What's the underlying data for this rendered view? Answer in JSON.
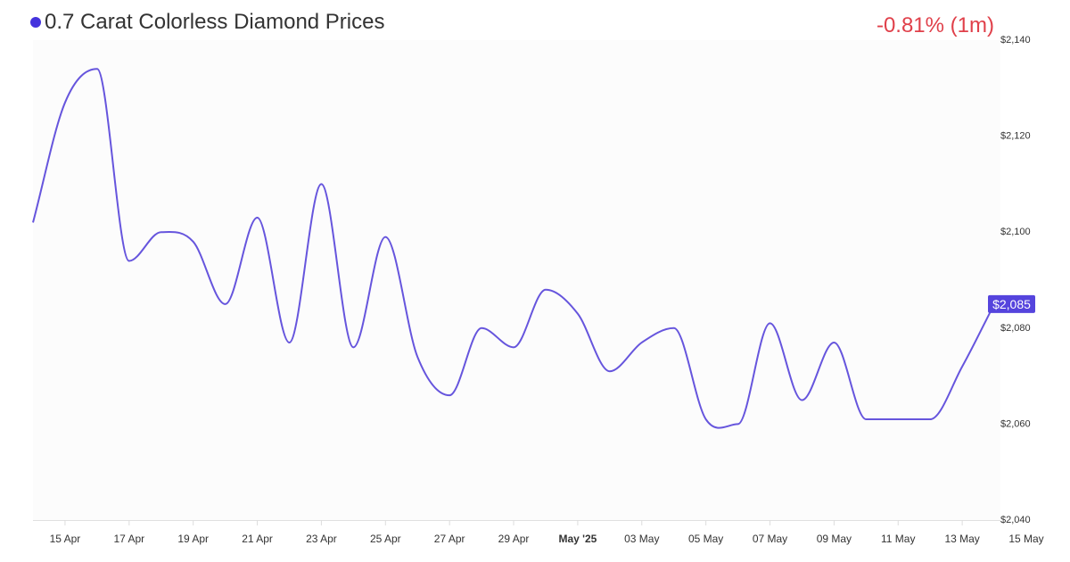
{
  "header": {
    "title": "0.7 Carat Colorless Diamond Prices",
    "change": "-0.81% (1m)"
  },
  "colors": {
    "line": "#6655dd",
    "dot": "#4433dd",
    "change": "#e0404a",
    "plot_bg": "#fcfcfc",
    "badge": "#5544dd"
  },
  "chart_data": {
    "type": "line",
    "title": "0.7 Carat Colorless Diamond Prices",
    "xlabel": "",
    "ylabel": "",
    "ylim": [
      2040,
      2140
    ],
    "grid": false,
    "x": [
      "2025-04-14",
      "2025-04-15",
      "2025-04-16",
      "2025-04-17",
      "2025-04-18",
      "2025-04-19",
      "2025-04-20",
      "2025-04-21",
      "2025-04-22",
      "2025-04-23",
      "2025-04-24",
      "2025-04-25",
      "2025-04-26",
      "2025-04-27",
      "2025-04-28",
      "2025-04-29",
      "2025-04-30",
      "2025-05-01",
      "2025-05-02",
      "2025-05-03",
      "2025-05-04",
      "2025-05-05",
      "2025-05-06",
      "2025-05-07",
      "2025-05-08",
      "2025-05-09",
      "2025-05-10",
      "2025-05-11",
      "2025-05-12",
      "2025-05-13",
      "2025-05-14"
    ],
    "series": [
      {
        "values": [
          2102,
          2127,
          2134,
          2094,
          2100,
          2098,
          2085,
          2103,
          2077,
          2110,
          2076,
          2099,
          2074,
          2066,
          2080,
          2076,
          2088,
          2083,
          2071,
          2077,
          2080,
          2061,
          2060,
          2081,
          2065,
          2077,
          2061,
          2061,
          2061,
          2072,
          2085
        ]
      }
    ],
    "xticks": [
      {
        "date": "2025-04-15",
        "label": "15 Apr",
        "bold": false
      },
      {
        "date": "2025-04-17",
        "label": "17 Apr",
        "bold": false
      },
      {
        "date": "2025-04-19",
        "label": "19 Apr",
        "bold": false
      },
      {
        "date": "2025-04-21",
        "label": "21 Apr",
        "bold": false
      },
      {
        "date": "2025-04-23",
        "label": "23 Apr",
        "bold": false
      },
      {
        "date": "2025-04-25",
        "label": "25 Apr",
        "bold": false
      },
      {
        "date": "2025-04-27",
        "label": "27 Apr",
        "bold": false
      },
      {
        "date": "2025-04-29",
        "label": "29 Apr",
        "bold": false
      },
      {
        "date": "2025-05-01",
        "label": "May '25",
        "bold": true
      },
      {
        "date": "2025-05-03",
        "label": "03 May",
        "bold": false
      },
      {
        "date": "2025-05-05",
        "label": "05 May",
        "bold": false
      },
      {
        "date": "2025-05-07",
        "label": "07 May",
        "bold": false
      },
      {
        "date": "2025-05-09",
        "label": "09 May",
        "bold": false
      },
      {
        "date": "2025-05-11",
        "label": "11 May",
        "bold": false
      },
      {
        "date": "2025-05-13",
        "label": "13 May",
        "bold": false
      },
      {
        "date": "2025-05-15",
        "label": "15 May",
        "bold": false
      }
    ],
    "yticks": [
      {
        "value": 2140,
        "label": "$2,140"
      },
      {
        "value": 2120,
        "label": "$2,120"
      },
      {
        "value": 2100,
        "label": "$2,100"
      },
      {
        "value": 2080,
        "label": "$2,080"
      },
      {
        "value": 2060,
        "label": "$2,060"
      },
      {
        "value": 2040,
        "label": "$2,040"
      }
    ],
    "last_value_label": "$2,085"
  }
}
